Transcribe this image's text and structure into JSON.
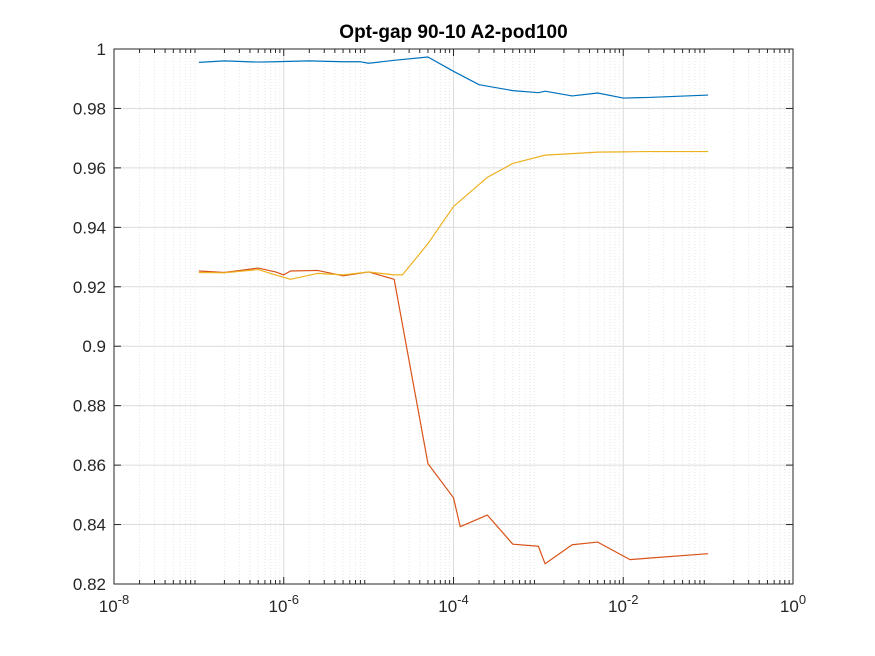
{
  "chart_data": {
    "type": "line",
    "title": "Opt-gap 90-10 A2-pod100",
    "xlabel": "",
    "ylabel": "",
    "x_scale": "log",
    "xlim": [
      1e-08,
      1
    ],
    "ylim": [
      0.82,
      1
    ],
    "grid": true,
    "minor_grid": true,
    "legend": "none",
    "x_ticks": [
      {
        "value": 1e-08,
        "base": "10",
        "exp": "-8"
      },
      {
        "value": 1e-06,
        "base": "10",
        "exp": "-6"
      },
      {
        "value": 0.0001,
        "base": "10",
        "exp": "-4"
      },
      {
        "value": 0.01,
        "base": "10",
        "exp": "-2"
      },
      {
        "value": 1,
        "base": "10",
        "exp": "0"
      }
    ],
    "y_ticks": [
      {
        "value": 0.82,
        "label": "0.82"
      },
      {
        "value": 0.84,
        "label": "0.84"
      },
      {
        "value": 0.86,
        "label": "0.86"
      },
      {
        "value": 0.88,
        "label": "0.88"
      },
      {
        "value": 0.9,
        "label": "0.9"
      },
      {
        "value": 0.92,
        "label": "0.92"
      },
      {
        "value": 0.94,
        "label": "0.94"
      },
      {
        "value": 0.96,
        "label": "0.96"
      },
      {
        "value": 0.98,
        "label": "0.98"
      },
      {
        "value": 1,
        "label": "1"
      }
    ],
    "series": [
      {
        "color": "#0072BD",
        "points": [
          [
            1e-07,
            0.9955
          ],
          [
            2e-07,
            0.996
          ],
          [
            5e-07,
            0.9956
          ],
          [
            8e-07,
            0.9957
          ],
          [
            1e-06,
            0.9958
          ],
          [
            2e-06,
            0.996
          ],
          [
            5e-06,
            0.9957
          ],
          [
            8e-06,
            0.9957
          ],
          [
            1e-05,
            0.9952
          ],
          [
            2e-05,
            0.9962
          ],
          [
            5e-05,
            0.9973
          ],
          [
            0.0001,
            0.9925
          ],
          [
            0.0002,
            0.988
          ],
          [
            0.0005,
            0.986
          ],
          [
            0.001,
            0.9853
          ],
          [
            0.0012,
            0.9858
          ],
          [
            0.0025,
            0.9842
          ],
          [
            0.005,
            0.9852
          ],
          [
            0.01,
            0.9835
          ],
          [
            0.02,
            0.9837
          ],
          [
            0.1,
            0.9845
          ]
        ]
      },
      {
        "color": "#D95319",
        "points": [
          [
            1e-07,
            0.9253
          ],
          [
            2e-07,
            0.9248
          ],
          [
            5e-07,
            0.9263
          ],
          [
            8e-07,
            0.925
          ],
          [
            1e-06,
            0.924
          ],
          [
            1.2e-06,
            0.9253
          ],
          [
            2.5e-06,
            0.9255
          ],
          [
            5e-06,
            0.9237
          ],
          [
            1e-05,
            0.925
          ],
          [
            2e-05,
            0.9225
          ],
          [
            5e-05,
            0.8605
          ],
          [
            0.0001,
            0.849
          ],
          [
            0.00012,
            0.8393
          ],
          [
            0.00025,
            0.8432
          ],
          [
            0.0005,
            0.8334
          ],
          [
            0.001,
            0.8327
          ],
          [
            0.0012,
            0.8268
          ],
          [
            0.0025,
            0.8332
          ],
          [
            0.005,
            0.8341
          ],
          [
            0.012,
            0.8282
          ],
          [
            0.02,
            0.8287
          ],
          [
            0.1,
            0.8302
          ]
        ]
      },
      {
        "color": "#EDB120",
        "points": [
          [
            1e-07,
            0.9248
          ],
          [
            2e-07,
            0.9247
          ],
          [
            5e-07,
            0.9258
          ],
          [
            8e-07,
            0.924
          ],
          [
            1.2e-06,
            0.9225
          ],
          [
            2.5e-06,
            0.9245
          ],
          [
            5e-06,
            0.924
          ],
          [
            1e-05,
            0.925
          ],
          [
            2e-05,
            0.924
          ],
          [
            2.5e-05,
            0.924
          ],
          [
            5e-05,
            0.9345
          ],
          [
            0.0001,
            0.947
          ],
          [
            0.00025,
            0.9568
          ],
          [
            0.0005,
            0.9615
          ],
          [
            0.0012,
            0.9643
          ],
          [
            0.0025,
            0.9648
          ],
          [
            0.005,
            0.9653
          ],
          [
            0.01,
            0.9654
          ],
          [
            0.02,
            0.9655
          ],
          [
            0.1,
            0.9655
          ]
        ]
      }
    ]
  }
}
